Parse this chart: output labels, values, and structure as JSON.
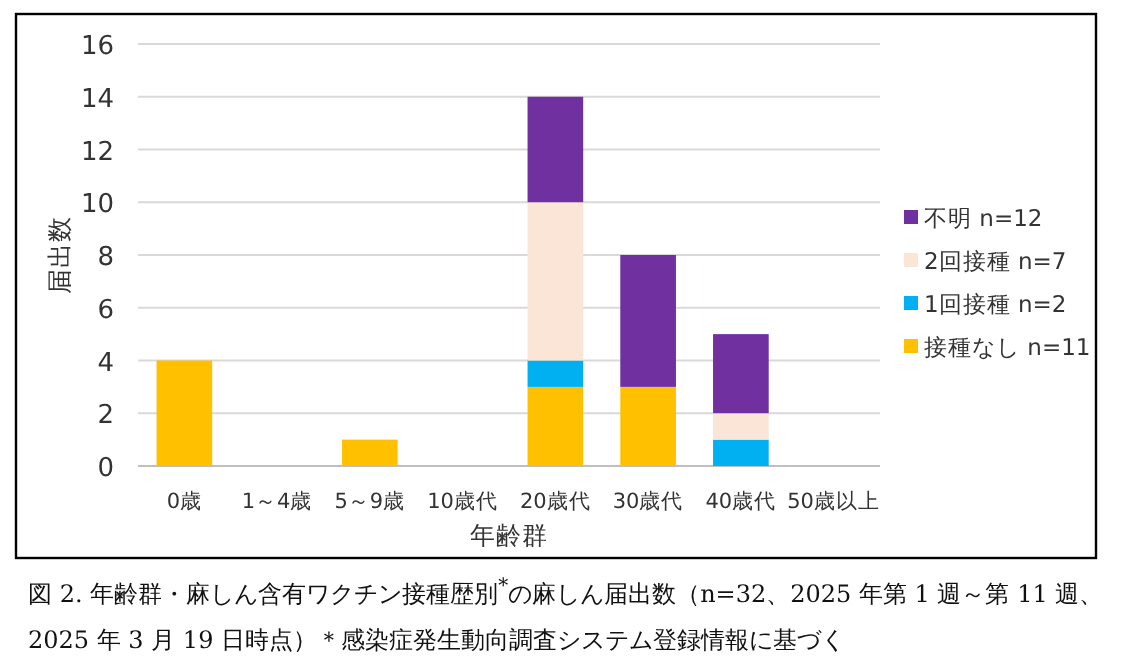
{
  "chart_data": {
    "type": "bar",
    "stacked": true,
    "xlabel": "年齢群",
    "ylabel": "届出数",
    "categories": [
      "0歳",
      "1～4歳",
      "5～9歳",
      "10歳代",
      "20歳代",
      "30歳代",
      "40歳代",
      "50歳以上"
    ],
    "series": [
      {
        "name": "接種なし n=11",
        "color": "#ffc000",
        "values": [
          4,
          0,
          1,
          0,
          3,
          3,
          0,
          0
        ]
      },
      {
        "name": "1回接種 n=2",
        "color": "#00b0f0",
        "values": [
          0,
          0,
          0,
          0,
          1,
          0,
          1,
          0
        ]
      },
      {
        "name": "2回接種 n=7",
        "color": "#fbe5d6",
        "values": [
          0,
          0,
          0,
          0,
          6,
          0,
          1,
          0
        ]
      },
      {
        "name": "不明 n=12",
        "color": "#7030a0",
        "values": [
          0,
          0,
          0,
          0,
          4,
          5,
          3,
          0
        ]
      }
    ],
    "ylim": [
      0,
      16
    ],
    "yticks": [
      0,
      2,
      4,
      6,
      8,
      10,
      12,
      14,
      16
    ],
    "grid": "y",
    "legend": "right",
    "annotations": [
      "図 2. 年齢群・麻しん含有ワクチン接種歴別$^{*}$の麻しん届出数（n=32、2025 年第 1 週～第 11 週、2025 年 3 月 19 日時点）＊感染症発生動向調査システム登録情報に基づく"
    ]
  }
}
